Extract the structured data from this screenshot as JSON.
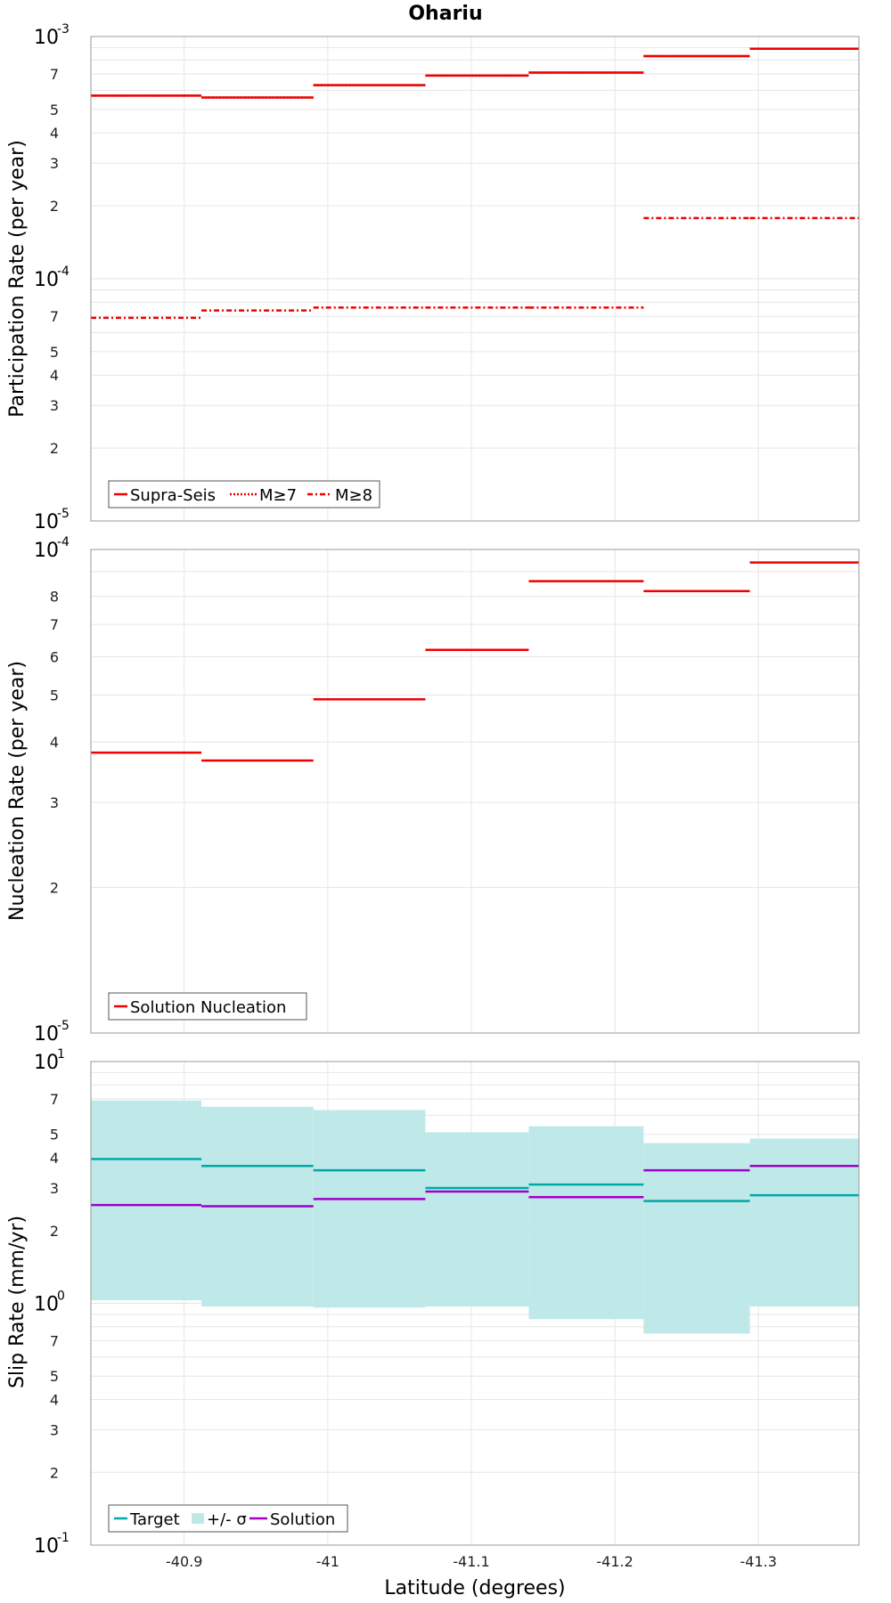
{
  "chart_data": [
    {
      "type": "line",
      "title": "Ohariu",
      "ylabel": "Participation Rate (per year)",
      "xlabel": "",
      "x_reversed": true,
      "xlim": [
        -40.835,
        -41.37
      ],
      "ylim": [
        1e-05,
        0.001
      ],
      "yscale": "log",
      "grid": true,
      "legend_position": "bottom-left",
      "x_bins": [
        [
          -40.835,
          -40.912
        ],
        [
          -40.912,
          -40.99
        ],
        [
          -40.99,
          -41.068
        ],
        [
          -41.068,
          -41.14
        ],
        [
          -41.14,
          -41.22
        ],
        [
          -41.22,
          -41.294
        ],
        [
          -41.294,
          -41.37
        ]
      ],
      "series": [
        {
          "name": "Supra-Seis",
          "style": "solid",
          "color": "#ee0000",
          "values": [
            0.00057,
            0.00056,
            0.00063,
            0.00069,
            0.00071,
            0.00083,
            0.00089
          ]
        },
        {
          "name": "M≥7",
          "style": "dotted",
          "color": "#ee0000",
          "values": [
            0.00057,
            0.00056,
            0.00063,
            0.00069,
            0.00071,
            0.00083,
            0.00089
          ]
        },
        {
          "name": "M≥8",
          "style": "dashdot",
          "color": "#ee0000",
          "values": [
            6.9e-05,
            7.4e-05,
            7.6e-05,
            7.6e-05,
            7.6e-05,
            0.000178,
            0.000178
          ]
        }
      ]
    },
    {
      "type": "line",
      "title": "",
      "ylabel": "Nucleation Rate (per year)",
      "xlabel": "",
      "x_reversed": true,
      "xlim": [
        -40.835,
        -41.37
      ],
      "ylim": [
        1e-05,
        0.0001
      ],
      "yscale": "log",
      "grid": true,
      "legend_position": "bottom-left",
      "x_bins": [
        [
          -40.835,
          -40.912
        ],
        [
          -40.912,
          -40.99
        ],
        [
          -40.99,
          -41.068
        ],
        [
          -41.068,
          -41.14
        ],
        [
          -41.14,
          -41.22
        ],
        [
          -41.22,
          -41.294
        ],
        [
          -41.294,
          -41.37
        ]
      ],
      "series": [
        {
          "name": "Solution Nucleation",
          "style": "solid",
          "color": "#ee0000",
          "values": [
            3.8e-05,
            3.66e-05,
            4.9e-05,
            6.2e-05,
            8.6e-05,
            8.2e-05,
            9.4e-05
          ]
        }
      ]
    },
    {
      "type": "area",
      "title": "",
      "ylabel": "Slip Rate (mm/yr)",
      "xlabel": "Latitude (degrees)",
      "x_reversed": true,
      "xlim": [
        -40.835,
        -41.37
      ],
      "ylim": [
        0.1,
        10
      ],
      "yscale": "log",
      "grid": true,
      "legend_position": "bottom-left",
      "x_bins": [
        [
          -40.835,
          -40.912
        ],
        [
          -40.912,
          -40.99
        ],
        [
          -40.99,
          -41.068
        ],
        [
          -41.068,
          -41.14
        ],
        [
          -41.14,
          -41.22
        ],
        [
          -41.22,
          -41.294
        ],
        [
          -41.294,
          -41.37
        ]
      ],
      "series": [
        {
          "name": "Target",
          "style": "solid",
          "color": "#00a8a8",
          "values": [
            3.95,
            3.7,
            3.55,
            3.0,
            3.1,
            2.65,
            2.8
          ]
        },
        {
          "name": "+/- σ",
          "style": "band",
          "color": "#bfe9e9",
          "lower": [
            1.03,
            0.97,
            0.96,
            0.97,
            0.86,
            0.75,
            0.97
          ],
          "upper": [
            6.9,
            6.5,
            6.3,
            5.1,
            5.4,
            4.6,
            4.8
          ]
        },
        {
          "name": "Solution",
          "style": "solid",
          "color": "#a000c8",
          "values": [
            2.55,
            2.52,
            2.7,
            2.9,
            2.75,
            3.55,
            3.7
          ]
        }
      ]
    }
  ],
  "x_tick_labels": [
    "-40.9",
    "-41",
    "-41.1",
    "-41.2",
    "-41.3"
  ],
  "x_ticks": [
    -40.9,
    -41.0,
    -41.1,
    -41.2,
    -41.3
  ],
  "y_tick_labels": [
    "2",
    "3",
    "4",
    "5",
    "7"
  ],
  "y_tick_labels_nucleation": [
    "2",
    "3",
    "4",
    "5",
    "6",
    "7",
    "8"
  ],
  "decade_labels": {
    "p1": [
      {
        "base": "10",
        "exp": "-3"
      },
      {
        "base": "10",
        "exp": "-4"
      },
      {
        "base": "10",
        "exp": "-5"
      }
    ],
    "p2": [
      {
        "base": "10",
        "exp": "-4"
      },
      {
        "base": "10",
        "exp": "-5"
      }
    ],
    "p3": [
      {
        "base": "10",
        "exp": "1"
      },
      {
        "base": "10",
        "exp": "0"
      },
      {
        "base": "10",
        "exp": "-1"
      }
    ]
  }
}
